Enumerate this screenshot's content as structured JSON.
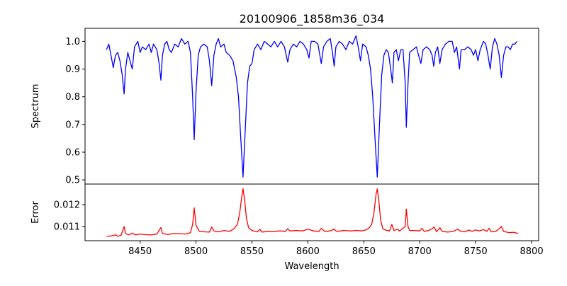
{
  "chart_data": [
    {
      "type": "line",
      "title": "20100906_1858m36_034",
      "xlabel": "",
      "ylabel": "Spectrum",
      "xlim": [
        8400.8,
        8806.3
      ],
      "ylim": [
        0.485,
        1.047
      ],
      "yticks": [
        0.5,
        0.6,
        0.7,
        0.8,
        0.9,
        1.0
      ],
      "ytick_labels": [
        "0.5",
        "0.6",
        "0.7",
        "0.8",
        "0.9",
        "1.0"
      ],
      "grid": false,
      "color": "#0000ff",
      "points": [
        [
          8420,
          0.97
        ],
        [
          8422,
          0.99
        ],
        [
          8424,
          0.95
        ],
        [
          8426,
          0.905
        ],
        [
          8428,
          0.95
        ],
        [
          8430,
          0.96
        ],
        [
          8432,
          0.93
        ],
        [
          8434,
          0.88
        ],
        [
          8435.7,
          0.81
        ],
        [
          8437,
          0.9
        ],
        [
          8439,
          0.96
        ],
        [
          8441,
          0.93
        ],
        [
          8443,
          0.9
        ],
        [
          8445,
          0.98
        ],
        [
          8448,
          1.0
        ],
        [
          8450,
          0.96
        ],
        [
          8452,
          0.98
        ],
        [
          8455,
          0.97
        ],
        [
          8458,
          0.99
        ],
        [
          8460,
          0.96
        ],
        [
          8462,
          0.99
        ],
        [
          8465,
          0.97
        ],
        [
          8467,
          0.92
        ],
        [
          8468.6,
          0.86
        ],
        [
          8470,
          0.95
        ],
        [
          8472,
          0.99
        ],
        [
          8474,
          1.0
        ],
        [
          8476,
          0.97
        ],
        [
          8478,
          0.96
        ],
        [
          8481,
          0.99
        ],
        [
          8484,
          0.98
        ],
        [
          8487,
          1.01
        ],
        [
          8490,
          0.99
        ],
        [
          8493,
          1.0
        ],
        [
          8495,
          0.96
        ],
        [
          8497,
          0.8
        ],
        [
          8498.4,
          0.645
        ],
        [
          8500,
          0.82
        ],
        [
          8502,
          0.95
        ],
        [
          8504,
          0.98
        ],
        [
          8507,
          0.99
        ],
        [
          8510,
          0.98
        ],
        [
          8512,
          0.93
        ],
        [
          8514,
          0.84
        ],
        [
          8516,
          0.95
        ],
        [
          8518,
          0.99
        ],
        [
          8520,
          1.01
        ],
        [
          8522,
          0.98
        ],
        [
          8525,
          0.99
        ],
        [
          8527,
          0.96
        ],
        [
          8530,
          0.95
        ],
        [
          8533,
          0.93
        ],
        [
          8536,
          0.87
        ],
        [
          8538,
          0.8
        ],
        [
          8540,
          0.65
        ],
        [
          8542,
          0.51
        ],
        [
          8544,
          0.68
        ],
        [
          8546,
          0.85
        ],
        [
          8548,
          0.91
        ],
        [
          8550,
          0.92
        ],
        [
          8552,
          0.97
        ],
        [
          8555,
          0.99
        ],
        [
          8558,
          0.97
        ],
        [
          8561,
          1.0
        ],
        [
          8564,
          0.99
        ],
        [
          8567,
          0.98
        ],
        [
          8570,
          1.0
        ],
        [
          8573,
          0.98
        ],
        [
          8576,
          1.0
        ],
        [
          8579,
          0.98
        ],
        [
          8582,
          0.925
        ],
        [
          8584,
          0.97
        ],
        [
          8587,
          0.99
        ],
        [
          8590,
          0.98
        ],
        [
          8593,
          1.0
        ],
        [
          8596,
          0.99
        ],
        [
          8599,
          0.97
        ],
        [
          8601,
          0.94
        ],
        [
          8603,
          1.0
        ],
        [
          8606,
          1.0
        ],
        [
          8609,
          0.99
        ],
        [
          8612,
          0.92
        ],
        [
          8614,
          0.98
        ],
        [
          8617,
          1.0
        ],
        [
          8620,
          1.01
        ],
        [
          8622,
          0.96
        ],
        [
          8623.5,
          0.91
        ],
        [
          8625,
          0.98
        ],
        [
          8628,
          1.0
        ],
        [
          8631,
          0.99
        ],
        [
          8634,
          0.97
        ],
        [
          8637,
          1.0
        ],
        [
          8640,
          0.99
        ],
        [
          8643,
          1.02
        ],
        [
          8645,
          0.98
        ],
        [
          8647,
          0.93
        ],
        [
          8649,
          0.99
        ],
        [
          8652,
          0.98
        ],
        [
          8654,
          0.95
        ],
        [
          8656,
          0.9
        ],
        [
          8658,
          0.8
        ],
        [
          8660,
          0.65
        ],
        [
          8662,
          0.51
        ],
        [
          8664,
          0.7
        ],
        [
          8666,
          0.88
        ],
        [
          8668,
          0.95
        ],
        [
          8670,
          0.97
        ],
        [
          8672,
          0.96
        ],
        [
          8674,
          0.9
        ],
        [
          8675.5,
          0.85
        ],
        [
          8677,
          0.96
        ],
        [
          8679,
          0.97
        ],
        [
          8681,
          0.93
        ],
        [
          8683,
          0.97
        ],
        [
          8685,
          0.97
        ],
        [
          8687,
          0.85
        ],
        [
          8688,
          0.69
        ],
        [
          8689.5,
          0.85
        ],
        [
          8691,
          0.96
        ],
        [
          8694,
          0.97
        ],
        [
          8697,
          0.98
        ],
        [
          8699,
          0.95
        ],
        [
          8701,
          0.92
        ],
        [
          8703,
          0.97
        ],
        [
          8706,
          0.98
        ],
        [
          8709,
          0.97
        ],
        [
          8711,
          0.95
        ],
        [
          8712.5,
          0.91
        ],
        [
          8714,
          0.96
        ],
        [
          8716,
          0.98
        ],
        [
          8718,
          0.92
        ],
        [
          8720,
          0.97
        ],
        [
          8723,
          0.99
        ],
        [
          8726,
          1.0
        ],
        [
          8729,
          1.0
        ],
        [
          8731,
          0.96
        ],
        [
          8733,
          0.98
        ],
        [
          8735.5,
          0.9
        ],
        [
          8737,
          0.97
        ],
        [
          8740,
          0.97
        ],
        [
          8743,
          0.98
        ],
        [
          8746,
          0.97
        ],
        [
          8748,
          0.95
        ],
        [
          8750,
          0.97
        ],
        [
          8752,
          0.93
        ],
        [
          8754,
          0.97
        ],
        [
          8757,
          1.0
        ],
        [
          8759,
          0.99
        ],
        [
          8761,
          0.95
        ],
        [
          8763,
          0.9
        ],
        [
          8765,
          0.98
        ],
        [
          8767,
          1.01
        ],
        [
          8769,
          0.99
        ],
        [
          8771,
          0.95
        ],
        [
          8773,
          0.87
        ],
        [
          8775,
          0.95
        ],
        [
          8777,
          0.98
        ],
        [
          8779,
          0.98
        ],
        [
          8781,
          0.97
        ],
        [
          8783,
          0.99
        ],
        [
          8785,
          0.99
        ],
        [
          8787,
          1.0
        ]
      ]
    },
    {
      "type": "line",
      "xlabel": "Wavelength",
      "ylabel": "Error",
      "xlim": [
        8400.8,
        8806.3
      ],
      "ylim": [
        0.010355,
        0.01294
      ],
      "xticks": [
        8450,
        8500,
        8550,
        8600,
        8650,
        8700,
        8750,
        8800
      ],
      "xtick_labels": [
        "8450",
        "8500",
        "8550",
        "8600",
        "8650",
        "8700",
        "8750",
        "8800"
      ],
      "yticks": [
        0.011,
        0.012
      ],
      "ytick_labels": [
        "0.011",
        "0.012"
      ],
      "grid": false,
      "color": "#ff0000",
      "points": [
        [
          8420,
          0.01055
        ],
        [
          8425,
          0.01058
        ],
        [
          8428,
          0.01062
        ],
        [
          8430,
          0.01056
        ],
        [
          8433,
          0.0106
        ],
        [
          8435.7,
          0.011
        ],
        [
          8437,
          0.01068
        ],
        [
          8440,
          0.01062
        ],
        [
          8443,
          0.0107
        ],
        [
          8446,
          0.01062
        ],
        [
          8450,
          0.01066
        ],
        [
          8455,
          0.01063
        ],
        [
          8460,
          0.01062
        ],
        [
          8465,
          0.01066
        ],
        [
          8468.6,
          0.01096
        ],
        [
          8470,
          0.01068
        ],
        [
          8475,
          0.01064
        ],
        [
          8480,
          0.01068
        ],
        [
          8485,
          0.01068
        ],
        [
          8490,
          0.01066
        ],
        [
          8495,
          0.01072
        ],
        [
          8497,
          0.0111
        ],
        [
          8498.4,
          0.01185
        ],
        [
          8500,
          0.01105
        ],
        [
          8503,
          0.01078
        ],
        [
          8508,
          0.01076
        ],
        [
          8512,
          0.01075
        ],
        [
          8514,
          0.01098
        ],
        [
          8516,
          0.0108
        ],
        [
          8520,
          0.01076
        ],
        [
          8525,
          0.01082
        ],
        [
          8530,
          0.01078
        ],
        [
          8534,
          0.0109
        ],
        [
          8537,
          0.0111
        ],
        [
          8539,
          0.0116
        ],
        [
          8541,
          0.0124
        ],
        [
          8542,
          0.01273
        ],
        [
          8543.5,
          0.0122
        ],
        [
          8545,
          0.0114
        ],
        [
          8547,
          0.01095
        ],
        [
          8550,
          0.01082
        ],
        [
          8555,
          0.01076
        ],
        [
          8557,
          0.01088
        ],
        [
          8559,
          0.01075
        ],
        [
          8565,
          0.01078
        ],
        [
          8570,
          0.01078
        ],
        [
          8575,
          0.0108
        ],
        [
          8580,
          0.01078
        ],
        [
          8582,
          0.0109
        ],
        [
          8584,
          0.0108
        ],
        [
          8590,
          0.01082
        ],
        [
          8595,
          0.0108
        ],
        [
          8600,
          0.01088
        ],
        [
          8605,
          0.0108
        ],
        [
          8610,
          0.01078
        ],
        [
          8612,
          0.01092
        ],
        [
          8615,
          0.01078
        ],
        [
          8620,
          0.0108
        ],
        [
          8623,
          0.01088
        ],
        [
          8626,
          0.01078
        ],
        [
          8632,
          0.01082
        ],
        [
          8638,
          0.0108
        ],
        [
          8644,
          0.01082
        ],
        [
          8648,
          0.0108
        ],
        [
          8652,
          0.01085
        ],
        [
          8655,
          0.01095
        ],
        [
          8657,
          0.0111
        ],
        [
          8659,
          0.0116
        ],
        [
          8661,
          0.0125
        ],
        [
          8662,
          0.01272
        ],
        [
          8663.5,
          0.01215
        ],
        [
          8665,
          0.0113
        ],
        [
          8667,
          0.0109
        ],
        [
          8670,
          0.01083
        ],
        [
          8673,
          0.0108
        ],
        [
          8675,
          0.0111
        ],
        [
          8677,
          0.01082
        ],
        [
          8680,
          0.01088
        ],
        [
          8682,
          0.0108
        ],
        [
          8685,
          0.01092
        ],
        [
          8687,
          0.011
        ],
        [
          8688,
          0.0118
        ],
        [
          8689.5,
          0.011
        ],
        [
          8691,
          0.01082
        ],
        [
          8695,
          0.01082
        ],
        [
          8700,
          0.0108
        ],
        [
          8702,
          0.01092
        ],
        [
          8704,
          0.01078
        ],
        [
          8708,
          0.01082
        ],
        [
          8711,
          0.0109
        ],
        [
          8713,
          0.01098
        ],
        [
          8715,
          0.01076
        ],
        [
          8718,
          0.01095
        ],
        [
          8720,
          0.01078
        ],
        [
          8725,
          0.01075
        ],
        [
          8730,
          0.01078
        ],
        [
          8734,
          0.01088
        ],
        [
          8736,
          0.0108
        ],
        [
          8740,
          0.01076
        ],
        [
          8744,
          0.01084
        ],
        [
          8747,
          0.01078
        ],
        [
          8750,
          0.01085
        ],
        [
          8753,
          0.0108
        ],
        [
          8757,
          0.01086
        ],
        [
          8760,
          0.01078
        ],
        [
          8762,
          0.01092
        ],
        [
          8764,
          0.01076
        ],
        [
          8768,
          0.01078
        ],
        [
          8771,
          0.0109
        ],
        [
          8773,
          0.011
        ],
        [
          8775,
          0.01078
        ],
        [
          8780,
          0.01072
        ],
        [
          8784,
          0.01074
        ],
        [
          8788,
          0.01068
        ]
      ]
    }
  ]
}
